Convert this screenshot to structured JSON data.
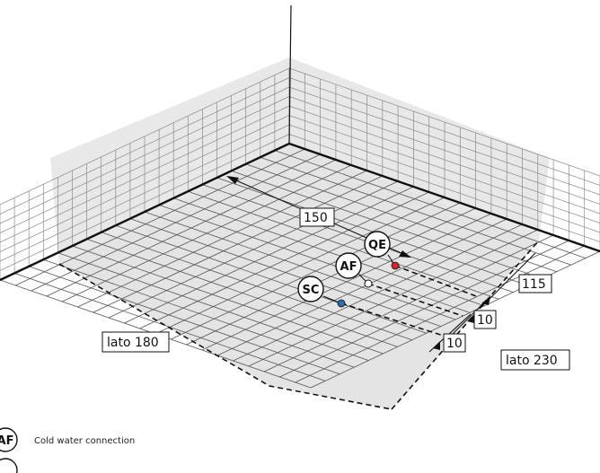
{
  "dimensions": {
    "d150": "150",
    "d115": "115",
    "d10a": "10",
    "d10b": "10",
    "side_left": "lato 180",
    "side_right": "lato 230"
  },
  "connections": [
    {
      "tag": "QE",
      "dot_color": "#d7262b"
    },
    {
      "tag": "AF",
      "dot_color": "#ffffff"
    },
    {
      "tag": "SC",
      "dot_color": "#2c6fae"
    }
  ],
  "legend": {
    "af_tag": "AF",
    "af_text": "Cold water connection"
  }
}
